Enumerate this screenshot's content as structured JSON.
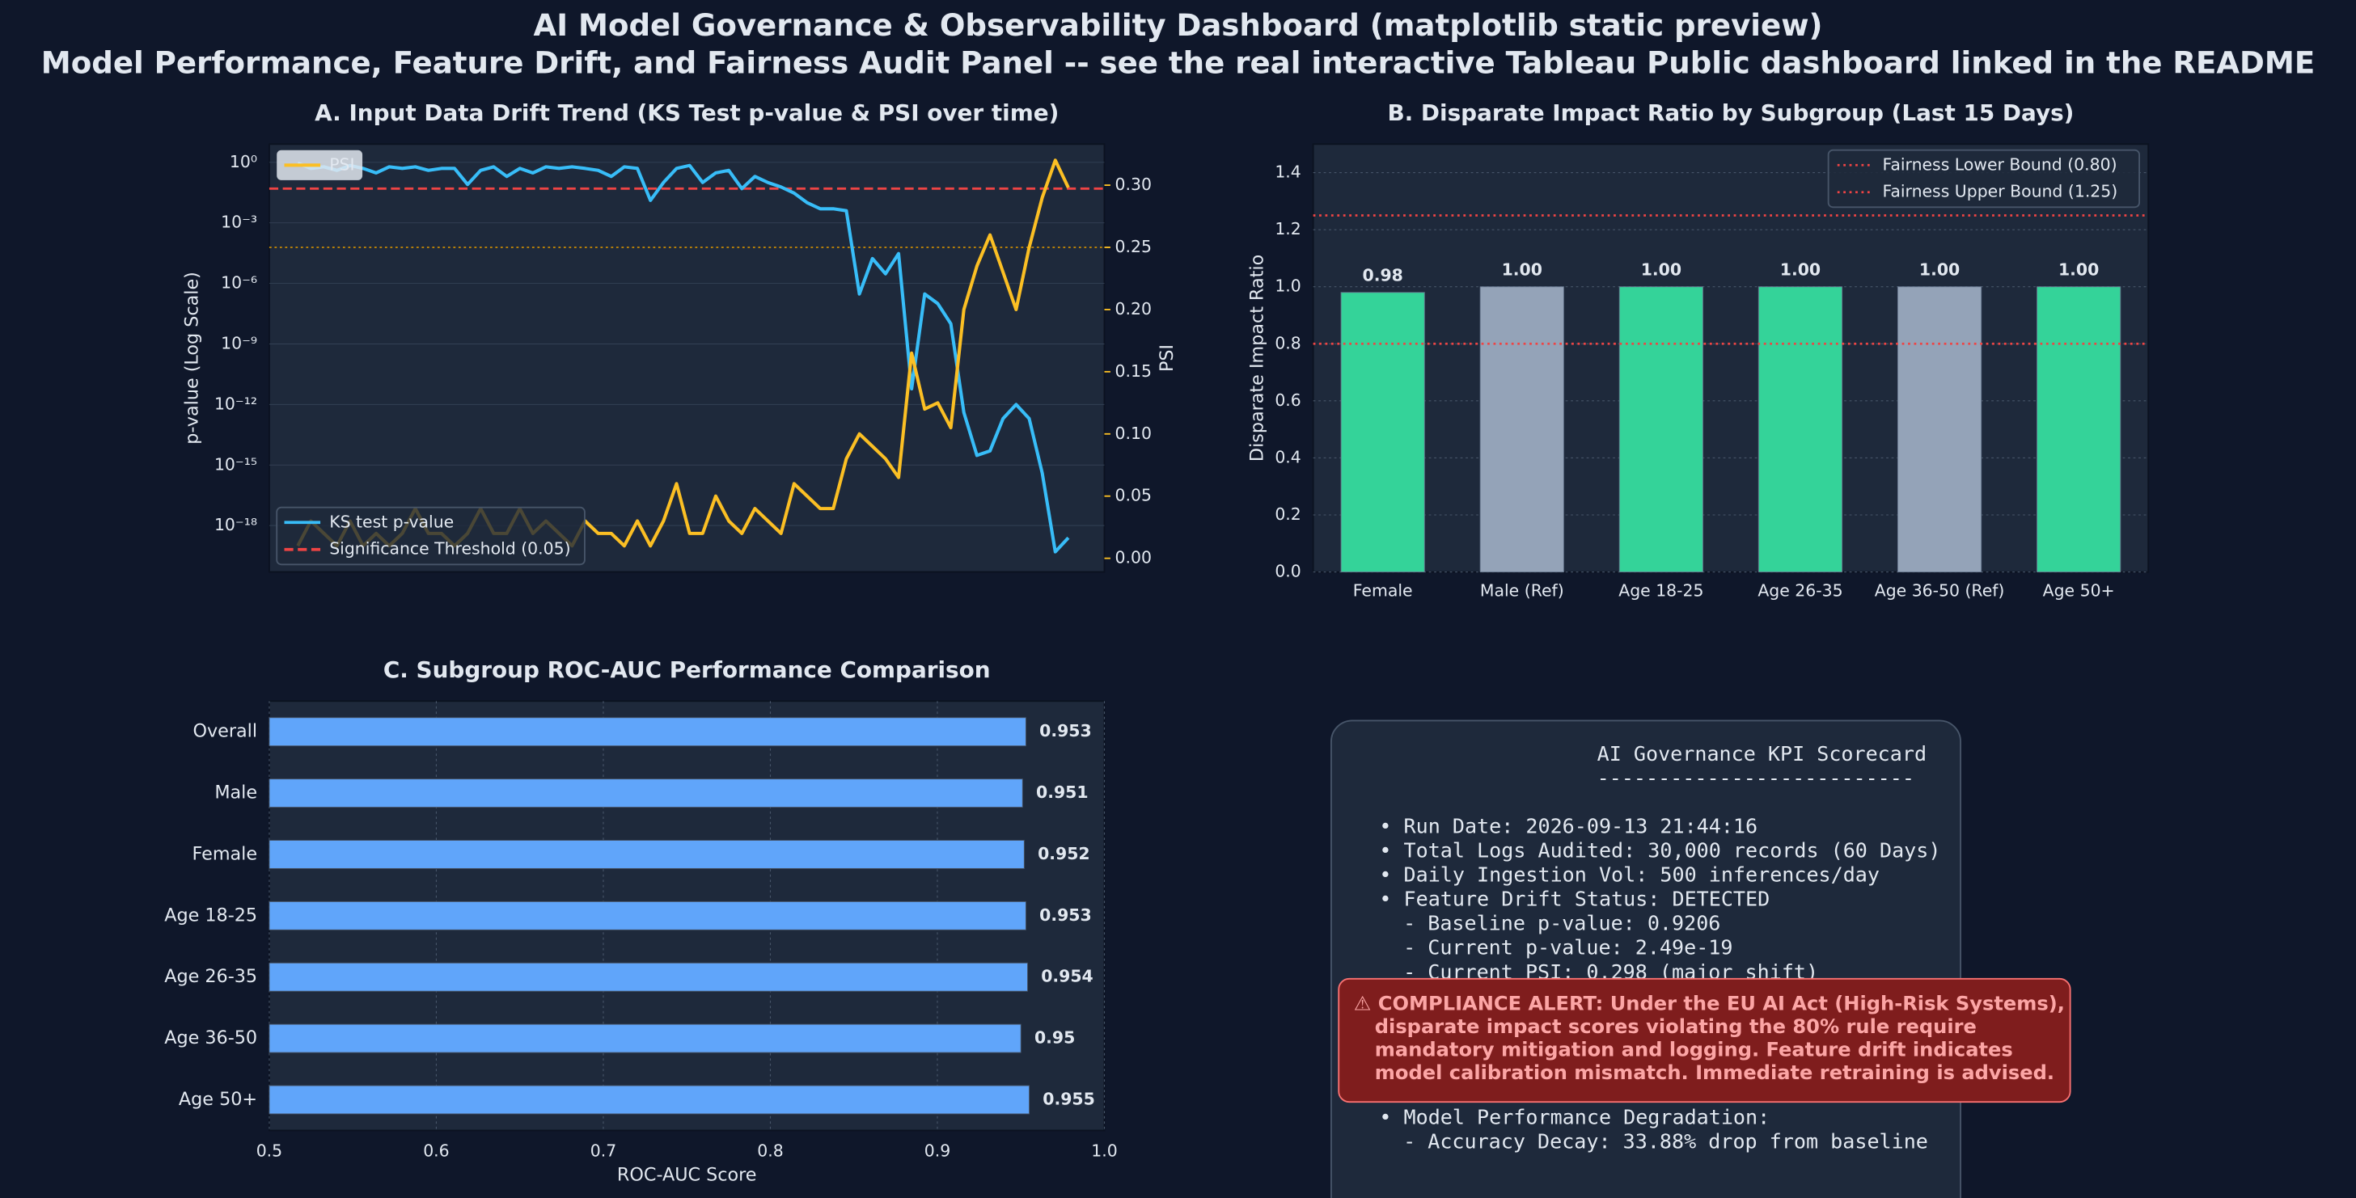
{
  "title": "AI Model Governance & Observability Dashboard (matplotlib static preview)",
  "subtitle": "Model Performance, Feature Drift, and Fairness Audit Panel -- see the real interactive Tableau Public dashboard linked in the README",
  "chart_data": [
    {
      "type": "line",
      "title": "A. Input Data Drift Trend (KS Test p-value & PSI over time)",
      "ylabel": "p-value (Log Scale)",
      "y2label": "PSI",
      "yscale": "log",
      "ylim": [
        5e-21,
        8
      ],
      "yticks": [
        {
          "value": 1,
          "label": "10⁰"
        },
        {
          "value": 0.001,
          "label": "10⁻³"
        },
        {
          "value": 1e-06,
          "label": "10⁻⁶"
        },
        {
          "value": 1e-09,
          "label": "10⁻⁹"
        },
        {
          "value": 1e-12,
          "label": "10⁻¹²"
        },
        {
          "value": 1e-15,
          "label": "10⁻¹⁵"
        },
        {
          "value": 1e-18,
          "label": "10⁻¹⁸"
        }
      ],
      "y2lim": [
        -0.011,
        0.333
      ],
      "y2ticks": [
        {
          "value": 0,
          "label": "0.00"
        },
        {
          "value": 0.05,
          "label": "0.05"
        },
        {
          "value": 0.1,
          "label": "0.10"
        },
        {
          "value": 0.15,
          "label": "0.15"
        },
        {
          "value": 0.2,
          "label": "0.20"
        },
        {
          "value": 0.25,
          "label": "0.25"
        },
        {
          "value": 0.3,
          "label": "0.30"
        }
      ],
      "grid": true,
      "series": [
        {
          "name": "KS test p-value",
          "color": "#38bdf8",
          "legend": "lower left",
          "values": [
            0.9206,
            0.5,
            0.6,
            0.4,
            0.7,
            0.5,
            0.3,
            0.6,
            0.5,
            0.6,
            0.4,
            0.5,
            0.5,
            0.08,
            0.4,
            0.6,
            0.2,
            0.5,
            0.3,
            0.6,
            0.5,
            0.6,
            0.5,
            0.4,
            0.2,
            0.6,
            0.5,
            0.013,
            0.1,
            0.5,
            0.7,
            0.1,
            0.3,
            0.4,
            0.05,
            0.2,
            0.1,
            0.06,
            0.03,
            0.01,
            0.005,
            0.005,
            0.004,
            3e-07,
            1.7e-05,
            3e-06,
            3e-05,
            6e-12,
            3e-07,
            1e-07,
            1e-08,
            4e-13,
            3e-15,
            5e-15,
            2e-13,
            1e-12,
            2e-13,
            4e-16,
            5e-20,
            2.49e-19
          ]
        },
        {
          "name": "PSI",
          "color": "#fbbf24",
          "axis": "y2",
          "legend": "upper left",
          "values": [
            0.01,
            0.03,
            0.02,
            0.01,
            0.03,
            0.01,
            0.02,
            0.01,
            0.02,
            0.04,
            0.02,
            0.02,
            0.01,
            0.02,
            0.04,
            0.02,
            0.02,
            0.04,
            0.02,
            0.03,
            0.02,
            0.01,
            0.03,
            0.02,
            0.02,
            0.01,
            0.03,
            0.01,
            0.03,
            0.06,
            0.02,
            0.02,
            0.05,
            0.03,
            0.02,
            0.04,
            0.03,
            0.02,
            0.06,
            0.05,
            0.04,
            0.04,
            0.08,
            0.1,
            0.09,
            0.08,
            0.065,
            0.165,
            0.12,
            0.125,
            0.105,
            0.2,
            0.235,
            0.26,
            0.23,
            0.2,
            0.25,
            0.29,
            0.32,
            0.298
          ]
        }
      ],
      "threshold": {
        "name": "Significance Threshold (0.05)",
        "value": 0.05,
        "color": "#ef4444"
      },
      "psi_threshold": {
        "value": 0.25,
        "color": "#ca8a04"
      }
    },
    {
      "type": "bar",
      "title": "B. Disparate Impact Ratio by Subgroup (Last 15 Days)",
      "ylabel": "Disparate Impact Ratio",
      "categories": [
        "Female",
        "Male (Ref)",
        "Age 18-25",
        "Age 26-35",
        "Age 36-50 (Ref)",
        "Age 50+"
      ],
      "values": [
        0.98,
        1,
        1,
        1,
        1,
        1
      ],
      "value_labels": [
        "0.98",
        "1.00",
        "1.00",
        "1.00",
        "1.00",
        "1.00"
      ],
      "colors": [
        "#34d399",
        "#94a3b8",
        "#34d399",
        "#34d399",
        "#94a3b8",
        "#34d399"
      ],
      "ylim": [
        0,
        1.5
      ],
      "yticks": [
        {
          "value": 0,
          "label": "0.0"
        },
        {
          "value": 0.2,
          "label": "0.2"
        },
        {
          "value": 0.4,
          "label": "0.4"
        },
        {
          "value": 0.6,
          "label": "0.6"
        },
        {
          "value": 0.8,
          "label": "0.8"
        },
        {
          "value": 1,
          "label": "1.0"
        },
        {
          "value": 1.2,
          "label": "1.2"
        },
        {
          "value": 1.4,
          "label": "1.4"
        }
      ],
      "grid": true,
      "legend": "upper right",
      "reference_lines": [
        {
          "name": "Fairness Lower Bound (0.80)",
          "value": 0.8,
          "color": "#ef4444"
        },
        {
          "name": "Fairness Upper Bound (1.25)",
          "value": 1.25,
          "color": "#ef4444"
        }
      ]
    },
    {
      "type": "barh",
      "title": "C. Subgroup ROC-AUC Performance Comparison",
      "xlabel": "ROC-AUC Score",
      "categories": [
        "Overall",
        "Male",
        "Female",
        "Age 18-25",
        "Age 26-35",
        "Age 36-50",
        "Age 50+"
      ],
      "values": [
        0.953,
        0.951,
        0.952,
        0.953,
        0.954,
        0.95,
        0.955
      ],
      "color": "#60a5fa",
      "xlim": [
        0.5,
        1.0
      ],
      "xticks": [
        0.5,
        0.6,
        0.7,
        0.8,
        0.9,
        {
          "value": 1,
          "label": "1.0"
        }
      ],
      "grid": true
    }
  ],
  "scorecard": {
    "title": "AI Governance KPI Scorecard",
    "separator": "--------------------------",
    "items": [
      "• Run Date: 2026-09-13 21:44:16",
      "• Total Logs Audited: 30,000 records (60 Days)",
      "• Daily Ingestion Vol: 500 inferences/day",
      "• Feature Drift Status: DETECTED",
      "- Baseline p-value: 0.9206",
      "- Current p-value: 2.49e-19",
      "- Current PSI: 0.298 (major shift)"
    ],
    "degradation": [
      "• Model Performance Degradation:",
      "- Accuracy Decay: 33.88% drop from baseline"
    ]
  },
  "alert": {
    "lines": [
      "⚠ COMPLIANCE ALERT: Under the EU AI Act (High-Risk Systems),",
      "disparate impact scores violating the 80% rule require",
      "mandatory mitigation and logging. Feature drift indicates",
      "model calibration mismatch. Immediate retraining is advised."
    ]
  }
}
